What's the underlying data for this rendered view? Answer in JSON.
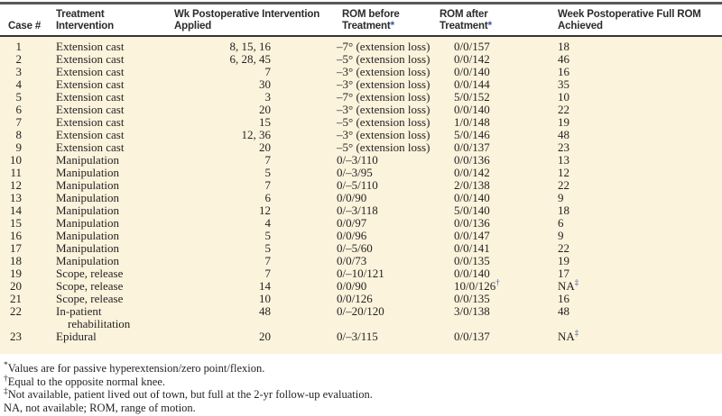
{
  "colors": {
    "accent_blue": "#3f51a3",
    "table_body_background": "#fbf3dc",
    "top_rule": "#57585c",
    "header_rule": "#343536"
  },
  "table": {
    "columns": [
      {
        "id": "case",
        "lines": [
          "Case #"
        ],
        "sup": ""
      },
      {
        "id": "treatment",
        "lines": [
          "Treatment",
          "Intervention"
        ],
        "sup": ""
      },
      {
        "id": "wk",
        "lines": [
          "Wk Postoperative Intervention",
          "Applied"
        ],
        "sup": ""
      },
      {
        "id": "rom_before",
        "lines": [
          "ROM before",
          "Treatment"
        ],
        "sup": "*"
      },
      {
        "id": "rom_after",
        "lines": [
          "ROM after",
          "Treatment"
        ],
        "sup": "*"
      },
      {
        "id": "week_full",
        "lines": [
          "Week Postoperative Full ROM",
          "Achieved"
        ],
        "sup": ""
      }
    ],
    "rows": [
      {
        "case": "1",
        "treatment": "Extension cast",
        "treatment_line2": "",
        "wk": "8, 15, 16",
        "rom_before": "–7° (extension loss)",
        "rom_after": "0/0/157",
        "rom_after_sup": "",
        "week_full": "18",
        "week_full_sup": ""
      },
      {
        "case": "2",
        "treatment": "Extension cast",
        "treatment_line2": "",
        "wk": "6, 28, 45",
        "rom_before": "–5° (extension loss)",
        "rom_after": "0/0/142",
        "rom_after_sup": "",
        "week_full": "46",
        "week_full_sup": ""
      },
      {
        "case": "3",
        "treatment": "Extension cast",
        "treatment_line2": "",
        "wk": "7",
        "rom_before": "–3° (extension loss)",
        "rom_after": "0/0/140",
        "rom_after_sup": "",
        "week_full": "16",
        "week_full_sup": ""
      },
      {
        "case": "4",
        "treatment": "Extension cast",
        "treatment_line2": "",
        "wk": "30",
        "rom_before": "–3° (extension loss)",
        "rom_after": "0/0/144",
        "rom_after_sup": "",
        "week_full": "35",
        "week_full_sup": ""
      },
      {
        "case": "5",
        "treatment": "Extension cast",
        "treatment_line2": "",
        "wk": "3",
        "rom_before": "–7° (extension loss)",
        "rom_after": "5/0/152",
        "rom_after_sup": "",
        "week_full": "10",
        "week_full_sup": ""
      },
      {
        "case": "6",
        "treatment": "Extension cast",
        "treatment_line2": "",
        "wk": "20",
        "rom_before": "–3° (extension loss)",
        "rom_after": "0/0/140",
        "rom_after_sup": "",
        "week_full": "22",
        "week_full_sup": ""
      },
      {
        "case": "7",
        "treatment": "Extension cast",
        "treatment_line2": "",
        "wk": "15",
        "rom_before": "–5° (extension loss)",
        "rom_after": "1/0/148",
        "rom_after_sup": "",
        "week_full": "19",
        "week_full_sup": ""
      },
      {
        "case": "8",
        "treatment": "Extension cast",
        "treatment_line2": "",
        "wk": "12, 36",
        "rom_before": "–3° (extension loss)",
        "rom_after": "5/0/146",
        "rom_after_sup": "",
        "week_full": "48",
        "week_full_sup": ""
      },
      {
        "case": "9",
        "treatment": "Extension cast",
        "treatment_line2": "",
        "wk": "20",
        "rom_before": "–5° (extension loss)",
        "rom_after": "0/0/137",
        "rom_after_sup": "",
        "week_full": "23",
        "week_full_sup": ""
      },
      {
        "case": "10",
        "treatment": "Manipulation",
        "treatment_line2": "",
        "wk": "7",
        "rom_before": "0/–3/110",
        "rom_after": "0/0/136",
        "rom_after_sup": "",
        "week_full": "13",
        "week_full_sup": ""
      },
      {
        "case": "11",
        "treatment": "Manipulation",
        "treatment_line2": "",
        "wk": "5",
        "rom_before": "0/–3/95",
        "rom_after": "0/0/142",
        "rom_after_sup": "",
        "week_full": "12",
        "week_full_sup": ""
      },
      {
        "case": "12",
        "treatment": "Manipulation",
        "treatment_line2": "",
        "wk": "7",
        "rom_before": "0/–5/110",
        "rom_after": "2/0/138",
        "rom_after_sup": "",
        "week_full": "22",
        "week_full_sup": ""
      },
      {
        "case": "13",
        "treatment": "Manipulation",
        "treatment_line2": "",
        "wk": "6",
        "rom_before": "0/0/90",
        "rom_after": "0/0/140",
        "rom_after_sup": "",
        "week_full": "9",
        "week_full_sup": ""
      },
      {
        "case": "14",
        "treatment": "Manipulation",
        "treatment_line2": "",
        "wk": "12",
        "rom_before": "0/–3/118",
        "rom_after": "5/0/140",
        "rom_after_sup": "",
        "week_full": "18",
        "week_full_sup": ""
      },
      {
        "case": "15",
        "treatment": "Manipulation",
        "treatment_line2": "",
        "wk": "4",
        "rom_before": "0/0/97",
        "rom_after": "0/0/136",
        "rom_after_sup": "",
        "week_full": "6",
        "week_full_sup": ""
      },
      {
        "case": "16",
        "treatment": "Manipulation",
        "treatment_line2": "",
        "wk": "5",
        "rom_before": "0/0/96",
        "rom_after": "0/0/147",
        "rom_after_sup": "",
        "week_full": "9",
        "week_full_sup": ""
      },
      {
        "case": "17",
        "treatment": "Manipulation",
        "treatment_line2": "",
        "wk": "5",
        "rom_before": "0/–5/60",
        "rom_after": "0/0/141",
        "rom_after_sup": "",
        "week_full": "22",
        "week_full_sup": ""
      },
      {
        "case": "18",
        "treatment": "Manipulation",
        "treatment_line2": "",
        "wk": "7",
        "rom_before": "0/0/73",
        "rom_after": "0/0/135",
        "rom_after_sup": "",
        "week_full": "19",
        "week_full_sup": ""
      },
      {
        "case": "19",
        "treatment": "Scope, release",
        "treatment_line2": "",
        "wk": "7",
        "rom_before": "0/–10/121",
        "rom_after": "0/0/140",
        "rom_after_sup": "",
        "week_full": "17",
        "week_full_sup": ""
      },
      {
        "case": "20",
        "treatment": "Scope, release",
        "treatment_line2": "",
        "wk": "14",
        "rom_before": "0/0/90",
        "rom_after": "10/0/126",
        "rom_after_sup": "†",
        "week_full": "NA",
        "week_full_sup": "‡"
      },
      {
        "case": "21",
        "treatment": "Scope, release",
        "treatment_line2": "",
        "wk": "10",
        "rom_before": "0/0/126",
        "rom_after": "0/0/135",
        "rom_after_sup": "",
        "week_full": "16",
        "week_full_sup": ""
      },
      {
        "case": "22",
        "treatment": "In-patient",
        "treatment_line2": "rehabilitation",
        "wk": "48",
        "rom_before": "0/–20/120",
        "rom_after": "3/0/138",
        "rom_after_sup": "",
        "week_full": "48",
        "week_full_sup": ""
      },
      {
        "case": "23",
        "treatment": "Epidural",
        "treatment_line2": "",
        "wk": "20",
        "rom_before": "0/–3/115",
        "rom_after": "0/0/137",
        "rom_after_sup": "",
        "week_full": "NA",
        "week_full_sup": "‡"
      }
    ]
  },
  "footnotes": [
    {
      "sym": "*",
      "text": "Values are for passive hyperextension/zero point/flexion."
    },
    {
      "sym": "†",
      "text": "Equal to the opposite normal knee."
    },
    {
      "sym": "‡",
      "text": "Not available, patient lived out of town, but full at the 2-yr follow-up evaluation."
    },
    {
      "sym": "",
      "text": "NA, not available; ROM, range of motion."
    }
  ]
}
